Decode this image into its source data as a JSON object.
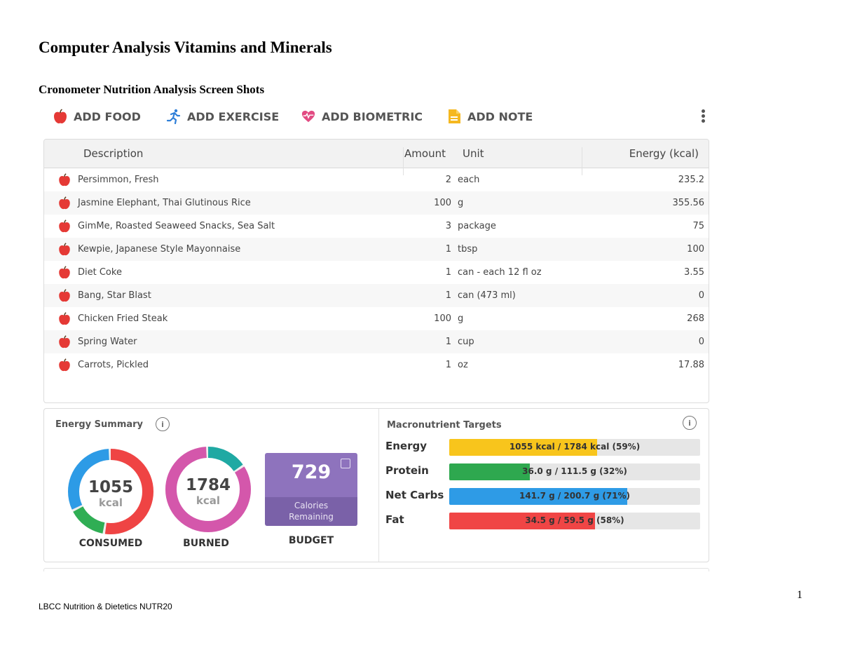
{
  "document": {
    "title": "Computer Analysis Vitamins and Minerals",
    "subtitle": "Cronometer Nutrition Analysis Screen Shots",
    "footer": "LBCC Nutrition & Dietetics NUTR20",
    "page_number": "1"
  },
  "toolbar": {
    "add_food": "ADD FOOD",
    "add_exercise": "ADD EXERCISE",
    "add_biometric": "ADD BIOMETRIC",
    "add_note": "ADD NOTE"
  },
  "colors": {
    "apple_red": "#e53935",
    "exercise_blue": "#2f7fd8",
    "biometric_pink": "#e24b82",
    "note_yellow": "#f5b820",
    "energy_yellow": "#f8c51c",
    "protein_green": "#2ea84f",
    "carbs_blue": "#2e9be6",
    "fat_red": "#f04545",
    "consumed_blue": "#2d9be6",
    "consumed_red": "#ef4444",
    "consumed_green": "#2fae54",
    "burned_pink": "#d457ab",
    "burned_teal": "#1fa9a3",
    "budget_purple": "#8e73bd"
  },
  "diary": {
    "headers": {
      "description": "Description",
      "amount": "Amount",
      "unit": "Unit",
      "energy": "Energy (kcal)"
    },
    "rows": [
      {
        "description": "Persimmon, Fresh",
        "amount": "2",
        "unit": "each",
        "energy": "235.2"
      },
      {
        "description": "Jasmine Elephant, Thai Glutinous Rice",
        "amount": "100",
        "unit": "g",
        "energy": "355.56"
      },
      {
        "description": "GimMe, Roasted Seaweed Snacks, Sea Salt",
        "amount": "3",
        "unit": "package",
        "energy": "75"
      },
      {
        "description": "Kewpie, Japanese Style Mayonnaise",
        "amount": "1",
        "unit": "tbsp",
        "energy": "100"
      },
      {
        "description": "Diet Coke",
        "amount": "1",
        "unit": "can - each 12 fl oz",
        "energy": "3.55"
      },
      {
        "description": "Bang, Star Blast",
        "amount": "1",
        "unit": "can (473 ml)",
        "energy": "0"
      },
      {
        "description": "Chicken Fried Steak",
        "amount": "100",
        "unit": "g",
        "energy": "268"
      },
      {
        "description": "Spring Water",
        "amount": "1",
        "unit": "cup",
        "energy": "0"
      },
      {
        "description": "Carrots, Pickled",
        "amount": "1",
        "unit": "oz",
        "energy": "17.88"
      }
    ]
  },
  "energy_summary": {
    "title": "Energy Summary",
    "consumed": {
      "value": "1055",
      "unit": "kcal",
      "label": "CONSUMED",
      "segments": [
        0.53,
        0.15,
        0.32
      ]
    },
    "burned": {
      "value": "1784",
      "unit": "kcal",
      "label": "BURNED",
      "segments": [
        0.16,
        0.84
      ]
    },
    "budget": {
      "value": "729",
      "line1": "Calories",
      "line2": "Remaining",
      "label": "BUDGET"
    }
  },
  "macros": {
    "title": "Macronutrient Targets",
    "items": [
      {
        "name": "Energy",
        "text": "1055 kcal / 1784 kcal (59%)",
        "fraction": 0.59
      },
      {
        "name": "Protein",
        "text": "36.0 g / 111.5 g (32%)",
        "fraction": 0.32
      },
      {
        "name": "Net Carbs",
        "text": "141.7 g / 200.7 g (71%)",
        "fraction": 0.71
      },
      {
        "name": "Fat",
        "text": "34.5 g / 59.5 g (58%)",
        "fraction": 0.58
      }
    ]
  }
}
